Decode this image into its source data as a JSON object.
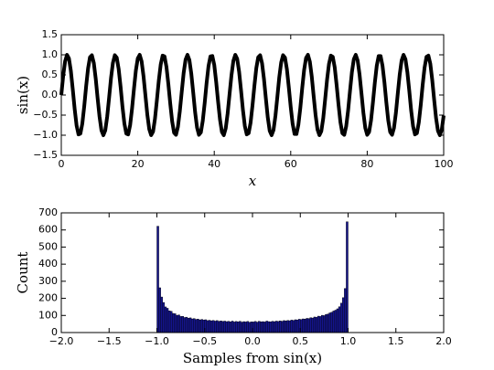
{
  "chart_data": [
    {
      "type": "line",
      "ylabel": "sin(x)",
      "xlabel": "x",
      "color": "#000000",
      "xlim": [
        0,
        100
      ],
      "ylim": [
        -1.5,
        1.5
      ],
      "xticks": [
        0,
        20,
        40,
        60,
        80,
        100
      ],
      "yticks": [
        {
          "value": -1.5,
          "label": "−1.5"
        },
        {
          "value": -1.0,
          "label": "−1.0"
        },
        {
          "value": -0.5,
          "label": "−0.5"
        },
        {
          "value": 0,
          "label": "0.0"
        },
        {
          "value": 0.5,
          "label": "0.5"
        },
        {
          "value": 1.0,
          "label": "1.0"
        },
        {
          "value": 1.5,
          "label": "1.5"
        }
      ],
      "x": [
        0,
        0.5,
        1,
        1.5,
        2,
        2.5,
        3,
        3.5,
        4,
        4.5,
        5,
        5.5,
        6,
        6.5,
        7,
        7.5,
        8,
        8.5,
        9,
        9.5,
        10,
        10.5,
        11,
        11.5,
        12,
        12.5,
        13,
        13.5,
        14,
        14.5,
        15,
        15.5,
        16,
        16.5,
        17,
        17.5,
        18,
        18.5,
        19,
        19.5,
        20,
        20.5,
        21,
        21.5,
        22,
        22.5,
        23,
        23.5,
        24,
        24.5,
        25,
        25.5,
        26,
        26.5,
        27,
        27.5,
        28,
        28.5,
        29,
        29.5,
        30,
        30.5,
        31,
        31.5,
        32,
        32.5,
        33,
        33.5,
        34,
        34.5,
        35,
        35.5,
        36,
        36.5,
        37,
        37.5,
        38,
        38.5,
        39,
        39.5,
        40,
        40.5,
        41,
        41.5,
        42,
        42.5,
        43,
        43.5,
        44,
        44.5,
        45,
        45.5,
        46,
        46.5,
        47,
        47.5,
        48,
        48.5,
        49,
        49.5,
        50,
        50.5,
        51,
        51.5,
        52,
        52.5,
        53,
        53.5,
        54,
        54.5,
        55,
        55.5,
        56,
        56.5,
        57,
        57.5,
        58,
        58.5,
        59,
        59.5,
        60,
        60.5,
        61,
        61.5,
        62,
        62.5,
        63,
        63.5,
        64,
        64.5,
        65,
        65.5,
        66,
        66.5,
        67,
        67.5,
        68,
        68.5,
        69,
        69.5,
        70,
        70.5,
        71,
        71.5,
        72,
        72.5,
        73,
        73.5,
        74,
        74.5,
        75,
        75.5,
        76,
        76.5,
        77,
        77.5,
        78,
        78.5,
        79,
        79.5,
        80,
        80.5,
        81,
        81.5,
        82,
        82.5,
        83,
        83.5,
        84,
        84.5,
        85,
        85.5,
        86,
        86.5,
        87,
        87.5,
        88,
        88.5,
        89,
        89.5,
        90,
        90.5,
        91,
        91.5,
        92,
        92.5,
        93,
        93.5,
        94,
        94.5,
        95,
        95.5,
        96,
        96.5,
        97,
        97.5,
        98,
        98.5,
        99,
        99.5,
        100
      ],
      "values": [
        0,
        0.48,
        0.84,
        1,
        0.91,
        0.6,
        0.14,
        -0.35,
        -0.76,
        -0.98,
        -0.96,
        -0.71,
        -0.28,
        0.22,
        0.66,
        0.94,
        0.99,
        0.8,
        0.41,
        -0.08,
        -0.54,
        -0.88,
        -1,
        -0.88,
        -0.54,
        -0.07,
        0.42,
        0.8,
        0.99,
        0.93,
        0.65,
        0.21,
        -0.29,
        -0.71,
        -0.96,
        -0.98,
        -0.75,
        -0.34,
        0.15,
        0.61,
        0.91,
        1,
        0.84,
        0.47,
        -0.01,
        -0.49,
        -0.85,
        -1,
        -0.91,
        -0.59,
        -0.13,
        0.36,
        0.76,
        0.98,
        0.96,
        0.7,
        0.27,
        -0.22,
        -0.66,
        -0.94,
        -0.99,
        -0.79,
        -0.4,
        0.08,
        0.55,
        0.88,
        1,
        0.87,
        0.53,
        0.06,
        -0.43,
        -0.81,
        -0.99,
        -0.93,
        -0.64,
        -0.2,
        0.3,
        0.72,
        0.96,
        0.97,
        0.75,
        0.33,
        -0.16,
        -0.61,
        -0.92,
        -1,
        -0.83,
        -0.46,
        0.02,
        0.49,
        0.85,
        1,
        0.9,
        0.58,
        0.12,
        -0.37,
        -0.77,
        -0.98,
        -0.95,
        -0.69,
        -0.26,
        0.23,
        0.67,
        0.94,
        0.99,
        0.79,
        0.4,
        -0.09,
        -0.56,
        -0.89,
        -1,
        -0.87,
        -0.52,
        -0.05,
        0.44,
        0.81,
        0.99,
        0.93,
        0.64,
        0.19,
        -0.3,
        -0.72,
        -0.97,
        -0.97,
        -0.74,
        -0.33,
        0.17,
        0.62,
        0.92,
        1,
        0.83,
        0.46,
        -0.03,
        -0.5,
        -0.86,
        -1,
        -0.9,
        -0.58,
        -0.11,
        0.38,
        0.77,
        0.98,
        0.95,
        0.69,
        0.25,
        -0.24,
        -0.68,
        -0.95,
        -0.99,
        -0.78,
        -0.39,
        0.1,
        0.57,
        0.89,
        1,
        0.86,
        0.51,
        0.04,
        -0.44,
        -0.82,
        -0.99,
        -0.92,
        -0.63,
        -0.18,
        0.31,
        0.73,
        0.97,
        0.97,
        0.73,
        0.32,
        -0.18,
        -0.63,
        -0.92,
        -0.99,
        -0.82,
        -0.45,
        0.04,
        0.51,
        0.86,
        1,
        0.89,
        0.57,
        0.11,
        -0.39,
        -0.78,
        -0.98,
        -0.95,
        -0.68,
        -0.25,
        0.25,
        0.68,
        0.95,
        0.98,
        0.78,
        0.38,
        -0.11,
        -0.57,
        -0.89,
        -1,
        -0.86,
        -0.51
      ]
    },
    {
      "type": "histogram",
      "xlabel": "Samples from sin(x)",
      "ylabel": "Count",
      "color": "#14148c",
      "xlim": [
        -2,
        2
      ],
      "ylim": [
        0,
        700
      ],
      "xticks": [
        {
          "value": -2,
          "label": "−2.0"
        },
        {
          "value": -1.5,
          "label": "−1.5"
        },
        {
          "value": -1,
          "label": "−1.0"
        },
        {
          "value": -0.5,
          "label": "−0.5"
        },
        {
          "value": 0,
          "label": "0.0"
        },
        {
          "value": 0.5,
          "label": "0.5"
        },
        {
          "value": 1,
          "label": "1.0"
        },
        {
          "value": 1.5,
          "label": "1.5"
        },
        {
          "value": 2,
          "label": "2.0"
        }
      ],
      "yticks": [
        0,
        100,
        200,
        300,
        400,
        500,
        600,
        700
      ],
      "bins": [
        -1,
        -0.98,
        -0.96,
        -0.94,
        -0.92,
        -0.9,
        -0.88,
        -0.86,
        -0.84,
        -0.82,
        -0.8,
        -0.78,
        -0.76,
        -0.74,
        -0.72,
        -0.7,
        -0.68,
        -0.66,
        -0.64,
        -0.62,
        -0.6,
        -0.58,
        -0.56,
        -0.54,
        -0.52,
        -0.5,
        -0.48,
        -0.46,
        -0.44,
        -0.42,
        -0.4,
        -0.38,
        -0.36,
        -0.34,
        -0.32,
        -0.3,
        -0.28,
        -0.26,
        -0.24,
        -0.22,
        -0.2,
        -0.18,
        -0.16,
        -0.14,
        -0.12,
        -0.1,
        -0.08,
        -0.06,
        -0.04,
        -0.02,
        0,
        0.02,
        0.04,
        0.06,
        0.08,
        0.1,
        0.12,
        0.14,
        0.16,
        0.18,
        0.2,
        0.22,
        0.24,
        0.26,
        0.28,
        0.3,
        0.32,
        0.34,
        0.36,
        0.38,
        0.4,
        0.42,
        0.44,
        0.46,
        0.48,
        0.5,
        0.52,
        0.54,
        0.56,
        0.58,
        0.6,
        0.62,
        0.64,
        0.66,
        0.68,
        0.7,
        0.72,
        0.74,
        0.76,
        0.78,
        0.8,
        0.82,
        0.84,
        0.86,
        0.88,
        0.9,
        0.92,
        0.94,
        0.96,
        0.98,
        1
      ],
      "values": [
        622,
        262,
        208,
        176,
        150,
        142,
        127,
        124,
        112,
        110,
        101,
        103,
        94,
        95,
        88,
        90,
        84,
        86,
        80,
        82,
        77,
        79,
        74,
        77,
        73,
        75,
        70,
        72,
        69,
        71,
        67,
        70,
        66,
        68,
        65,
        67,
        64,
        66,
        63,
        67,
        62,
        65,
        63,
        66,
        61,
        64,
        62,
        65,
        60,
        63,
        62,
        65,
        61,
        66,
        63,
        64,
        62,
        67,
        64,
        63,
        66,
        64,
        67,
        65,
        68,
        66,
        70,
        68,
        71,
        69,
        73,
        71,
        75,
        74,
        78,
        76,
        80,
        79,
        83,
        82,
        87,
        85,
        91,
        89,
        96,
        94,
        101,
        99,
        106,
        108,
        115,
        119,
        126,
        131,
        139,
        151,
        172,
        204,
        258,
        648
      ]
    }
  ]
}
